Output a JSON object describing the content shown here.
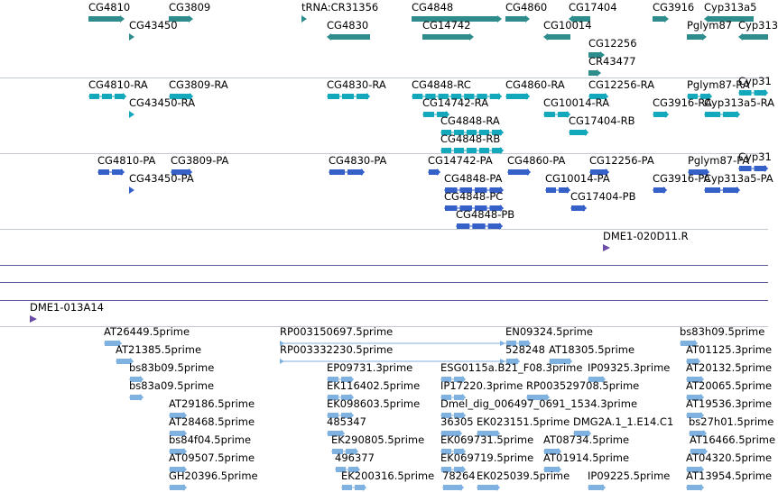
{
  "colors": {
    "gene": "#2e8c8c",
    "transcript": "#14a8bc",
    "protein": "#3560c8",
    "clone": "#6a4ca8",
    "est": "#7fb2e0",
    "separator": "#c2c7d6",
    "track_line": "#5c5a9a"
  },
  "tracks": [
    {
      "name": "gene",
      "features": [
        {
          "label": "CG4810",
          "shape": "bar-right",
          "color": "gene"
        },
        {
          "label": "CG3809",
          "shape": "bar-right",
          "color": "gene"
        },
        {
          "label": "tRNA:CR31356",
          "shape": "tick",
          "color": "gene"
        },
        {
          "label": "CG4848",
          "shape": "bar-right",
          "color": "gene"
        },
        {
          "label": "CG4860",
          "shape": "bar-right",
          "color": "gene"
        },
        {
          "label": "CG17404",
          "shape": "bar-left",
          "color": "gene"
        },
        {
          "label": "CG3916",
          "shape": "bar-right",
          "color": "gene"
        },
        {
          "label": "Cyp313a5",
          "shape": "bar-left",
          "color": "gene"
        },
        {
          "label": "CG43450",
          "shape": "tick",
          "color": "gene"
        },
        {
          "label": "CG4830",
          "shape": "bar-left",
          "color": "gene"
        },
        {
          "label": "CG14742",
          "shape": "bar-right",
          "color": "gene"
        },
        {
          "label": "CG10014",
          "shape": "bar-left",
          "color": "gene"
        },
        {
          "label": "Pglym87",
          "shape": "bar-right",
          "color": "gene"
        },
        {
          "label": "Cyp313",
          "shape": "bar-left",
          "color": "gene"
        },
        {
          "label": "CG12256",
          "shape": "bar-right",
          "color": "gene"
        },
        {
          "label": "CR43477",
          "shape": "bar-right",
          "color": "gene"
        }
      ]
    },
    {
      "name": "transcript",
      "features": [
        {
          "label": "CG4810-RA",
          "shape": "exons",
          "color": "transcript"
        },
        {
          "label": "CG3809-RA",
          "shape": "exons",
          "color": "transcript"
        },
        {
          "label": "CG4830-RA",
          "shape": "exons",
          "color": "transcript"
        },
        {
          "label": "CG4848-RC",
          "shape": "exons",
          "color": "transcript"
        },
        {
          "label": "CG4860-RA",
          "shape": "exons",
          "color": "transcript"
        },
        {
          "label": "CG12256-RA",
          "shape": "exons",
          "color": "transcript"
        },
        {
          "label": "Pglym87-RA",
          "shape": "exons",
          "color": "transcript"
        },
        {
          "label": "CG43450-RA",
          "shape": "tick",
          "color": "transcript"
        },
        {
          "label": "CG14742-RA",
          "shape": "exons",
          "color": "transcript"
        },
        {
          "label": "CG10014-RA",
          "shape": "exons",
          "color": "transcript"
        },
        {
          "label": "CG3916-RA",
          "shape": "exons",
          "color": "transcript"
        },
        {
          "label": "Cyp313a5-RA",
          "shape": "exons",
          "color": "transcript"
        },
        {
          "label": "CG4848-RA",
          "shape": "exons",
          "color": "transcript"
        },
        {
          "label": "CG17404-RB",
          "shape": "exons",
          "color": "transcript"
        },
        {
          "label": "CG4848-RB",
          "shape": "exons",
          "color": "transcript"
        },
        {
          "label": "Cyp31",
          "shape": "exons",
          "color": "transcript"
        }
      ]
    },
    {
      "name": "protein",
      "features": [
        {
          "label": "CG4810-PA",
          "shape": "exons",
          "color": "protein"
        },
        {
          "label": "CG3809-PA",
          "shape": "exons",
          "color": "protein"
        },
        {
          "label": "CG4830-PA",
          "shape": "exons",
          "color": "protein"
        },
        {
          "label": "CG14742-PA",
          "shape": "exons",
          "color": "protein"
        },
        {
          "label": "CG4860-PA",
          "shape": "exons",
          "color": "protein"
        },
        {
          "label": "CG12256-PA",
          "shape": "exons",
          "color": "protein"
        },
        {
          "label": "Pglym87-PA",
          "shape": "exons",
          "color": "protein"
        },
        {
          "label": "CG43450-PA",
          "shape": "tick",
          "color": "protein"
        },
        {
          "label": "CG4848-PA",
          "shape": "exons",
          "color": "protein"
        },
        {
          "label": "CG10014-PA",
          "shape": "exons",
          "color": "protein"
        },
        {
          "label": "CG3916-PA",
          "shape": "exons",
          "color": "protein"
        },
        {
          "label": "Cyp313a5-PA",
          "shape": "exons",
          "color": "protein"
        },
        {
          "label": "CG4848-PC",
          "shape": "exons",
          "color": "protein"
        },
        {
          "label": "CG17404-PB",
          "shape": "exons",
          "color": "protein"
        },
        {
          "label": "CG4848-PB",
          "shape": "exons",
          "color": "protein"
        },
        {
          "label": "Cyp31",
          "shape": "exons",
          "color": "protein"
        }
      ]
    },
    {
      "name": "clone-b",
      "features": [
        {
          "label": "DME1-020D11.R",
          "shape": "tick",
          "color": "clone"
        }
      ]
    },
    {
      "name": "clone-a",
      "features": [
        {
          "label": "DME1-013A14",
          "shape": "tick",
          "color": "clone"
        }
      ]
    },
    {
      "name": "est",
      "features": [
        {
          "label": "AT26449.5prime",
          "shape": "exons",
          "color": "est"
        },
        {
          "label": "RP003150697.5prime",
          "shape": "span",
          "color": "est"
        },
        {
          "label": "EN09324.5prime",
          "shape": "exons",
          "color": "est"
        },
        {
          "label": "bs83h09.5prime",
          "shape": "exons",
          "color": "est"
        },
        {
          "label": "AT21385.5prime",
          "shape": "exons",
          "color": "est"
        },
        {
          "label": "RP003332230.5prime",
          "shape": "span",
          "color": "est"
        },
        {
          "label": "528248",
          "shape": "exons",
          "color": "est"
        },
        {
          "label": "AT18305.5prime",
          "shape": "exons",
          "color": "est"
        },
        {
          "label": "AT01125.3prime",
          "shape": "exons",
          "color": "est"
        },
        {
          "label": "bs83b09.5prime",
          "shape": "exons",
          "color": "est"
        },
        {
          "label": "EP09731.3prime",
          "shape": "exons",
          "color": "est"
        },
        {
          "label": "ESG0115a.B21_F08.3prime",
          "shape": "exons",
          "color": "est"
        },
        {
          "label": "IP09325.3prime",
          "shape": "exons",
          "color": "est"
        },
        {
          "label": "AT20132.5prime",
          "shape": "exons",
          "color": "est"
        },
        {
          "label": "bs83a09.5prime",
          "shape": "exons",
          "color": "est"
        },
        {
          "label": "EK116402.5prime",
          "shape": "exons",
          "color": "est"
        },
        {
          "label": "IP17220.3prime",
          "shape": "exons",
          "color": "est"
        },
        {
          "label": "RP003529708.5prime",
          "shape": "exons",
          "color": "est"
        },
        {
          "label": "AT20065.5prime",
          "shape": "exons",
          "color": "est"
        },
        {
          "label": "AT29186.5prime",
          "shape": "exons",
          "color": "est"
        },
        {
          "label": "EK098603.5prime",
          "shape": "exons",
          "color": "est"
        },
        {
          "label": "Dmel_dig_006497_0691_1534.3prime",
          "shape": "exons",
          "color": "est"
        },
        {
          "label": "AT19536.3prime",
          "shape": "exons",
          "color": "est"
        },
        {
          "label": "AT28468.5prime",
          "shape": "exons",
          "color": "est"
        },
        {
          "label": "485347",
          "shape": "exons",
          "color": "est"
        },
        {
          "label": "36305",
          "shape": "exons",
          "color": "est"
        },
        {
          "label": "EK023151.5prime",
          "shape": "exons",
          "color": "est"
        },
        {
          "label": "DMG2A.1_1.E14.C1",
          "shape": "exons",
          "color": "est"
        },
        {
          "label": "bs27h01.5prime",
          "shape": "exons",
          "color": "est"
        },
        {
          "label": "bs84f04.5prime",
          "shape": "exons",
          "color": "est"
        },
        {
          "label": "EK290805.5prime",
          "shape": "exons",
          "color": "est"
        },
        {
          "label": "EK069731.5prime",
          "shape": "exons",
          "color": "est"
        },
        {
          "label": "AT08734.5prime",
          "shape": "exons",
          "color": "est"
        },
        {
          "label": "AT16466.5prime",
          "shape": "exons",
          "color": "est"
        },
        {
          "label": "AT09507.5prime",
          "shape": "exons",
          "color": "est"
        },
        {
          "label": "496377",
          "shape": "exons",
          "color": "est"
        },
        {
          "label": "EK069719.5prime",
          "shape": "exons",
          "color": "est"
        },
        {
          "label": "AT01914.5prime",
          "shape": "exons",
          "color": "est"
        },
        {
          "label": "AT04320.5prime",
          "shape": "exons",
          "color": "est"
        },
        {
          "label": "GH20396.5prime",
          "shape": "exons",
          "color": "est"
        },
        {
          "label": "EK200316.5prime",
          "shape": "exons",
          "color": "est"
        },
        {
          "label": "78264",
          "shape": "exons",
          "color": "est"
        },
        {
          "label": "EK025039.5prime",
          "shape": "exons",
          "color": "est"
        },
        {
          "label": "IP09225.5prime",
          "shape": "exons",
          "color": "est"
        },
        {
          "label": "AT13954.5prime",
          "shape": "exons",
          "color": "est"
        }
      ]
    }
  ]
}
